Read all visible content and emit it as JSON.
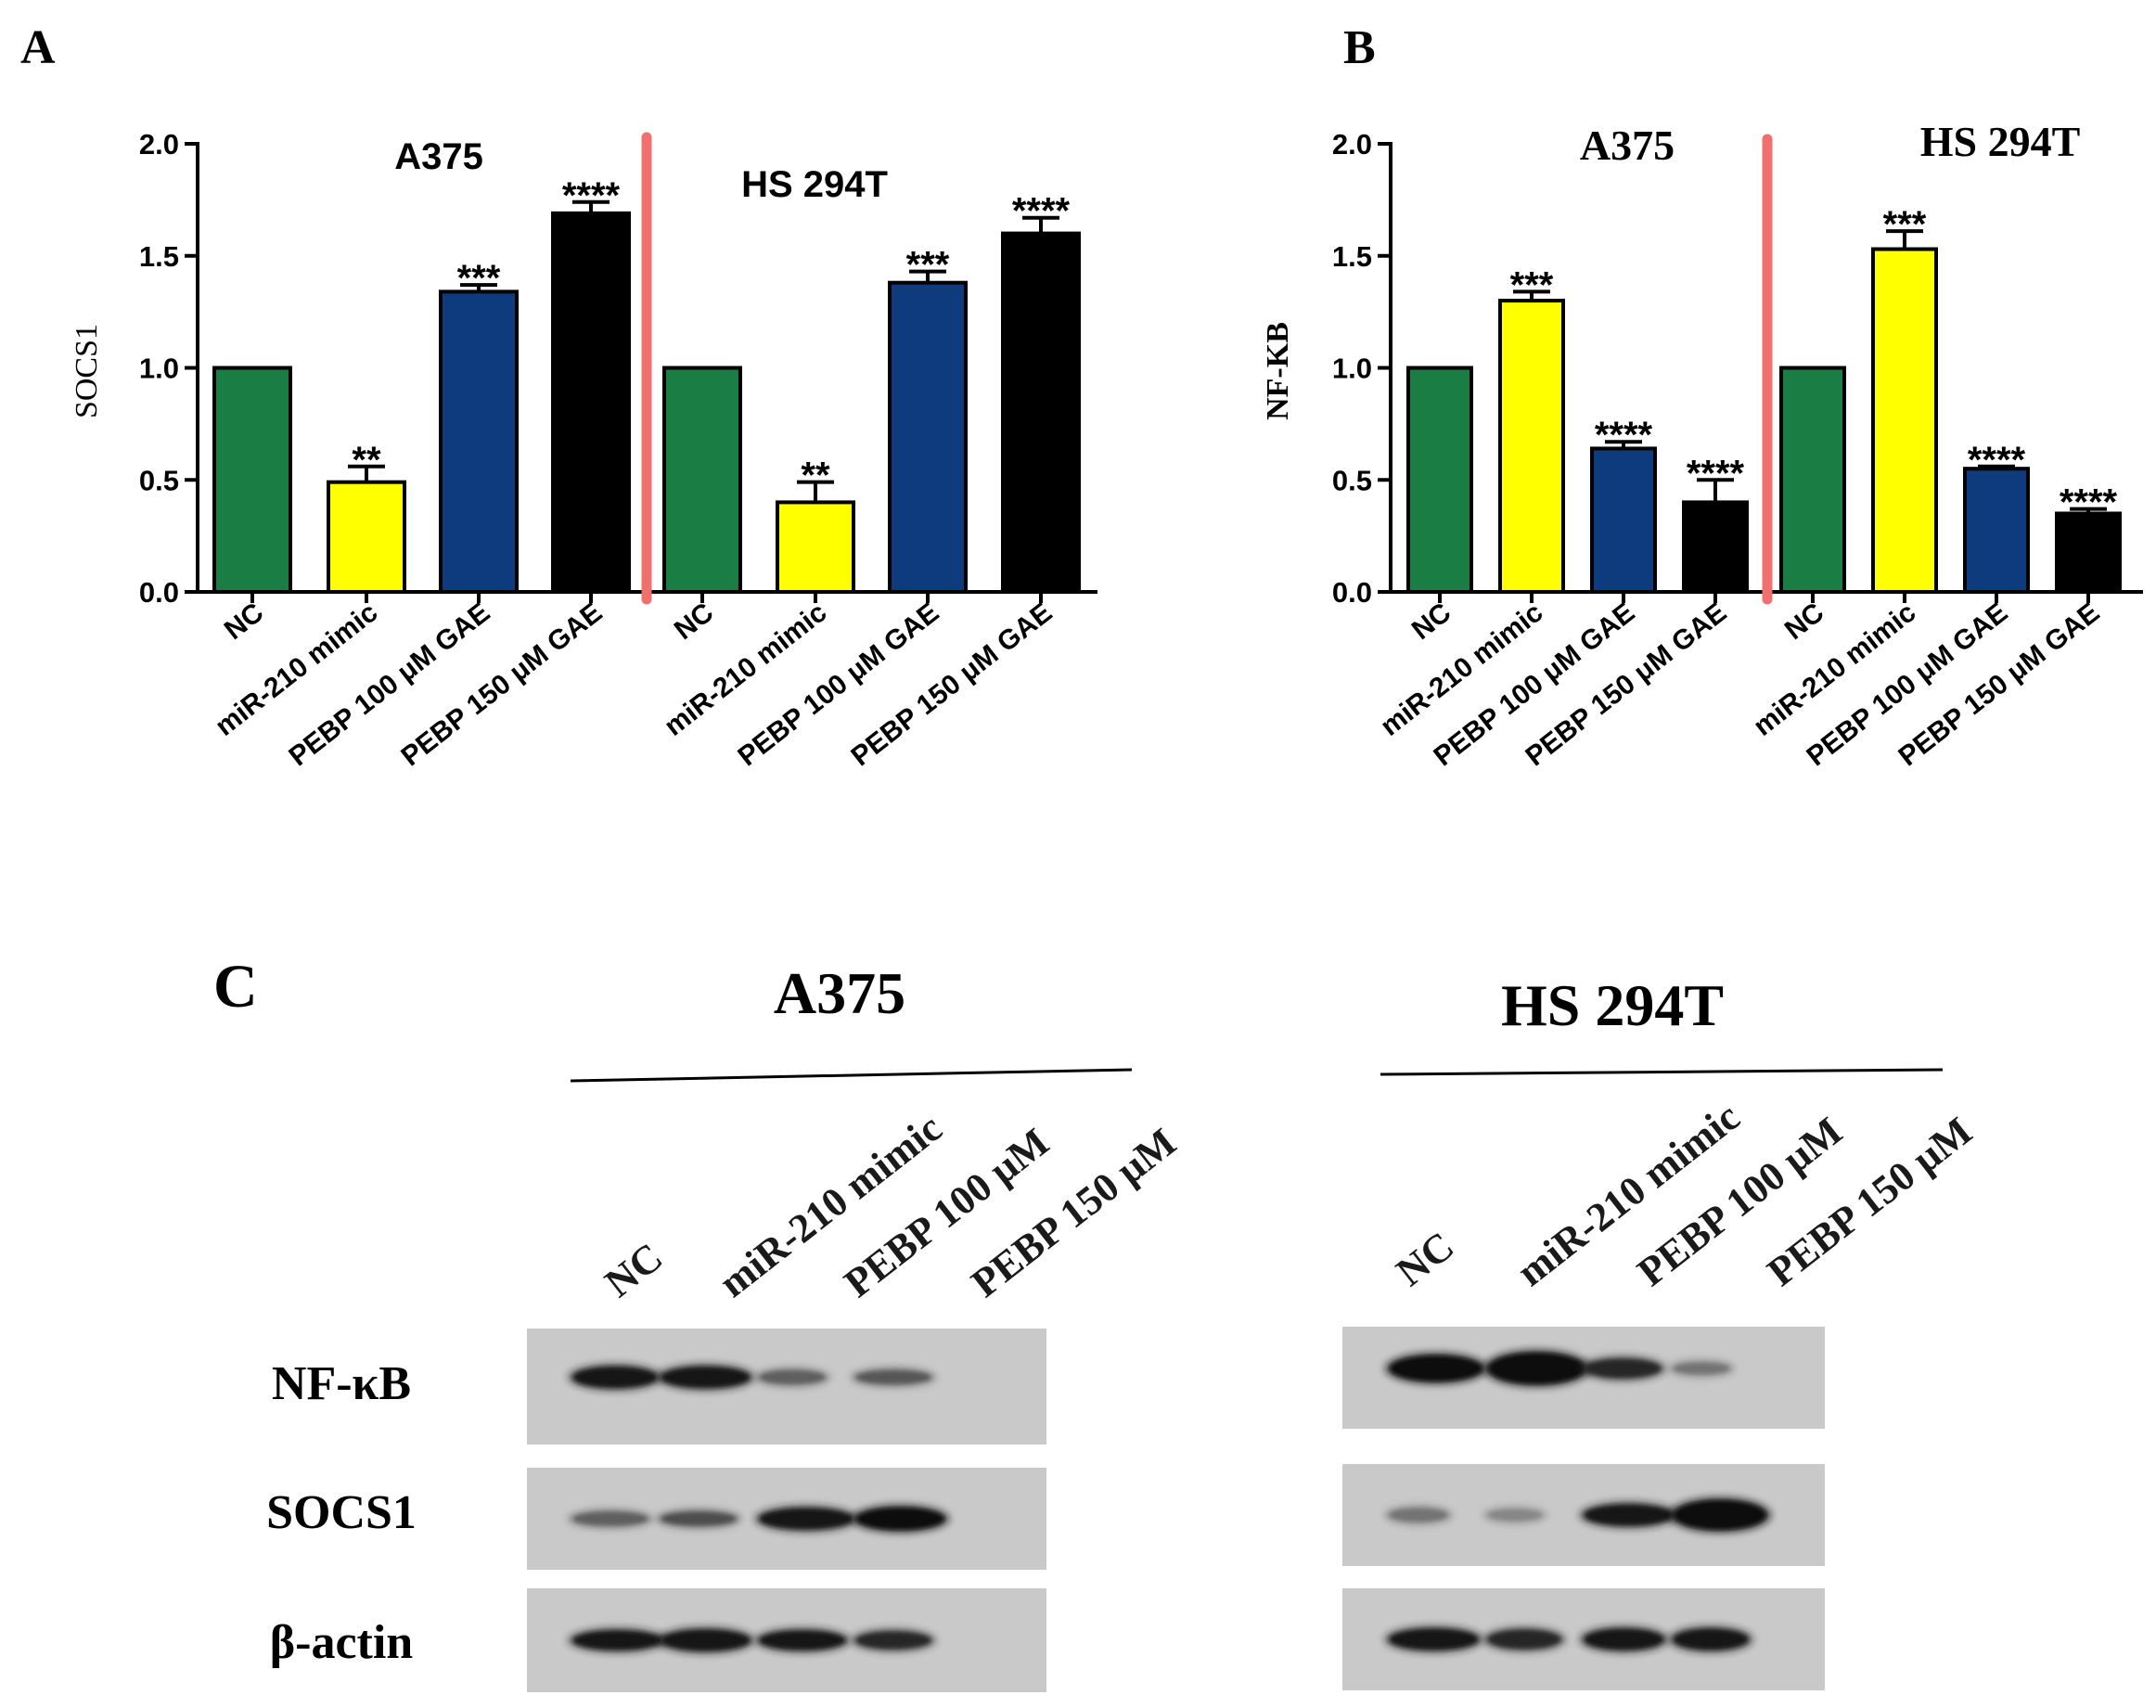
{
  "colors": {
    "nc": "#1a7d44",
    "mimic": "#ffff00",
    "pebp100": "#0d3b7d",
    "pebp150": "#000000",
    "divider": "#f07070"
  },
  "chart_data": [
    {
      "type": "bar",
      "panel_label": "A",
      "ylabel": "SOCS1",
      "ylim": [
        0,
        2.0
      ],
      "yticks": [
        "0.0",
        "0.5",
        "1.0",
        "1.5",
        "2.0"
      ],
      "groups": [
        {
          "name": "A375",
          "categories": [
            "NC",
            "miR-210 mimic",
            "PEBP 100 μM GAE",
            "PEBP 150 μM GAE"
          ],
          "values": [
            1.0,
            0.49,
            1.34,
            1.69
          ],
          "errors": [
            0,
            0.07,
            0.03,
            0.05
          ],
          "significance": [
            "",
            "**",
            "***",
            "****"
          ]
        },
        {
          "name": "HS 294T",
          "categories": [
            "NC",
            "miR-210 mimic",
            "PEBP 100 μM GAE",
            "PEBP 150 μM GAE"
          ],
          "values": [
            1.0,
            0.4,
            1.38,
            1.6
          ],
          "errors": [
            0,
            0.09,
            0.05,
            0.07
          ],
          "significance": [
            "",
            "**",
            "***",
            "****"
          ]
        }
      ]
    },
    {
      "type": "bar",
      "panel_label": "B",
      "ylabel": "NF-KB",
      "ylim": [
        0,
        2.0
      ],
      "yticks": [
        "0.0",
        "0.5",
        "1.0",
        "1.5",
        "2.0"
      ],
      "groups": [
        {
          "name": "A375",
          "categories": [
            "NC",
            "miR-210 mimic",
            "PEBP 100 μM GAE",
            "PEBP 150 μM GAE"
          ],
          "values": [
            1.0,
            1.3,
            0.64,
            0.4
          ],
          "errors": [
            0,
            0.04,
            0.03,
            0.1
          ],
          "significance": [
            "",
            "***",
            "****",
            "****"
          ]
        },
        {
          "name": "HS 294T",
          "categories": [
            "NC",
            "miR-210 mimic",
            "PEBP 100 μM GAE",
            "PEBP 150 μM GAE"
          ],
          "values": [
            1.0,
            1.53,
            0.55,
            0.35
          ],
          "errors": [
            0,
            0.08,
            0.01,
            0.02
          ],
          "significance": [
            "",
            "***",
            "****",
            "****"
          ]
        }
      ]
    }
  ],
  "western_blot": {
    "panel_label": "C",
    "proteins": [
      "NF-κB",
      "SOCS1",
      "β-actin"
    ],
    "blots": [
      {
        "name": "A375",
        "lanes": [
          "NC",
          "miR-210 mimic",
          "PEBP 100 μM",
          "PEBP 150 μM"
        ]
      },
      {
        "name": "HS 294T",
        "lanes": [
          "NC",
          "miR-210 mimic",
          "PEBP 100 μM",
          "PEBP 150 μM"
        ]
      }
    ]
  }
}
